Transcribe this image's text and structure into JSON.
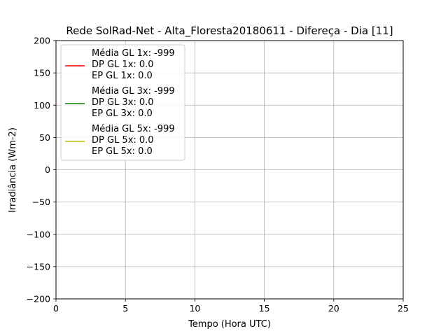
{
  "chart_data": {
    "type": "line",
    "title": "Rede SolRad-Net - Alta_Floresta20180611 - Difereça - Dia [11]",
    "xlabel": "Tempo (Hora UTC)",
    "ylabel": "Irradiância (Wm-2)",
    "xlim": [
      0,
      25
    ],
    "ylim": [
      -200,
      200
    ],
    "xticks": [
      0,
      5,
      10,
      15,
      20,
      25
    ],
    "xtick_labels": [
      "0",
      "5",
      "10",
      "15",
      "20",
      "25"
    ],
    "yticks": [
      200,
      150,
      100,
      50,
      0,
      -50,
      -100,
      -150,
      -200
    ],
    "ytick_labels": [
      "200",
      "150",
      "100",
      "50",
      "0",
      "−50",
      "−100",
      "−150",
      "−200"
    ],
    "grid": true,
    "legend_position": "top-left",
    "series": [
      {
        "color": "#ff0000",
        "legend_lines": [
          "Média GL 1x: -999",
          "DP GL 1x: 0.0",
          "EP GL 1x: 0.0"
        ],
        "x": [],
        "y": []
      },
      {
        "color": "#008000",
        "legend_lines": [
          "Média GL 3x: -999",
          "DP GL 3x: 0.0",
          "EP GL 3x: 0.0"
        ],
        "x": [],
        "y": []
      },
      {
        "color": "#bfbf00",
        "legend_lines": [
          "Média GL 5x: -999",
          "DP GL 5x: 0.0",
          "EP GL 5x: 0.0"
        ],
        "x": [],
        "y": []
      }
    ]
  }
}
